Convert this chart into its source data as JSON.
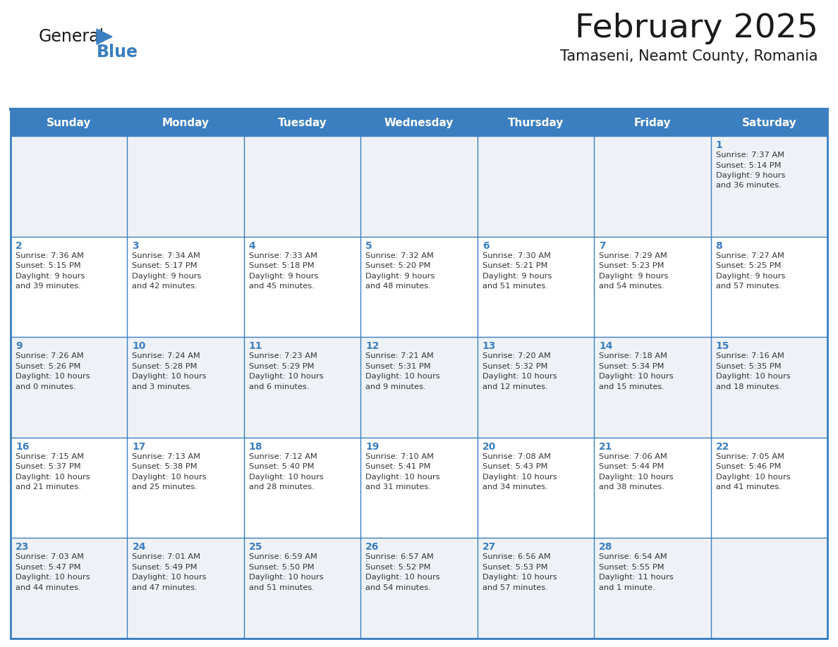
{
  "title": "February 2025",
  "subtitle": "Tamaseni, Neamt County, Romania",
  "title_fontsize": 34,
  "subtitle_fontsize": 15,
  "header_bg_color": "#3c7fc0",
  "header_text_color": "#ffffff",
  "row0_bg": "#eef2f7",
  "row1_bg": "#ffffff",
  "border_color": "#3c7fc0",
  "day_number_color": "#3c7fc0",
  "cell_text_color": "#333333",
  "days_of_week": [
    "Sunday",
    "Monday",
    "Tuesday",
    "Wednesday",
    "Thursday",
    "Friday",
    "Saturday"
  ],
  "calendar_data": [
    [
      {
        "day": "",
        "info": ""
      },
      {
        "day": "",
        "info": ""
      },
      {
        "day": "",
        "info": ""
      },
      {
        "day": "",
        "info": ""
      },
      {
        "day": "",
        "info": ""
      },
      {
        "day": "",
        "info": ""
      },
      {
        "day": "1",
        "info": "Sunrise: 7:37 AM\nSunset: 5:14 PM\nDaylight: 9 hours\nand 36 minutes."
      }
    ],
    [
      {
        "day": "2",
        "info": "Sunrise: 7:36 AM\nSunset: 5:15 PM\nDaylight: 9 hours\nand 39 minutes."
      },
      {
        "day": "3",
        "info": "Sunrise: 7:34 AM\nSunset: 5:17 PM\nDaylight: 9 hours\nand 42 minutes."
      },
      {
        "day": "4",
        "info": "Sunrise: 7:33 AM\nSunset: 5:18 PM\nDaylight: 9 hours\nand 45 minutes."
      },
      {
        "day": "5",
        "info": "Sunrise: 7:32 AM\nSunset: 5:20 PM\nDaylight: 9 hours\nand 48 minutes."
      },
      {
        "day": "6",
        "info": "Sunrise: 7:30 AM\nSunset: 5:21 PM\nDaylight: 9 hours\nand 51 minutes."
      },
      {
        "day": "7",
        "info": "Sunrise: 7:29 AM\nSunset: 5:23 PM\nDaylight: 9 hours\nand 54 minutes."
      },
      {
        "day": "8",
        "info": "Sunrise: 7:27 AM\nSunset: 5:25 PM\nDaylight: 9 hours\nand 57 minutes."
      }
    ],
    [
      {
        "day": "9",
        "info": "Sunrise: 7:26 AM\nSunset: 5:26 PM\nDaylight: 10 hours\nand 0 minutes."
      },
      {
        "day": "10",
        "info": "Sunrise: 7:24 AM\nSunset: 5:28 PM\nDaylight: 10 hours\nand 3 minutes."
      },
      {
        "day": "11",
        "info": "Sunrise: 7:23 AM\nSunset: 5:29 PM\nDaylight: 10 hours\nand 6 minutes."
      },
      {
        "day": "12",
        "info": "Sunrise: 7:21 AM\nSunset: 5:31 PM\nDaylight: 10 hours\nand 9 minutes."
      },
      {
        "day": "13",
        "info": "Sunrise: 7:20 AM\nSunset: 5:32 PM\nDaylight: 10 hours\nand 12 minutes."
      },
      {
        "day": "14",
        "info": "Sunrise: 7:18 AM\nSunset: 5:34 PM\nDaylight: 10 hours\nand 15 minutes."
      },
      {
        "day": "15",
        "info": "Sunrise: 7:16 AM\nSunset: 5:35 PM\nDaylight: 10 hours\nand 18 minutes."
      }
    ],
    [
      {
        "day": "16",
        "info": "Sunrise: 7:15 AM\nSunset: 5:37 PM\nDaylight: 10 hours\nand 21 minutes."
      },
      {
        "day": "17",
        "info": "Sunrise: 7:13 AM\nSunset: 5:38 PM\nDaylight: 10 hours\nand 25 minutes."
      },
      {
        "day": "18",
        "info": "Sunrise: 7:12 AM\nSunset: 5:40 PM\nDaylight: 10 hours\nand 28 minutes."
      },
      {
        "day": "19",
        "info": "Sunrise: 7:10 AM\nSunset: 5:41 PM\nDaylight: 10 hours\nand 31 minutes."
      },
      {
        "day": "20",
        "info": "Sunrise: 7:08 AM\nSunset: 5:43 PM\nDaylight: 10 hours\nand 34 minutes."
      },
      {
        "day": "21",
        "info": "Sunrise: 7:06 AM\nSunset: 5:44 PM\nDaylight: 10 hours\nand 38 minutes."
      },
      {
        "day": "22",
        "info": "Sunrise: 7:05 AM\nSunset: 5:46 PM\nDaylight: 10 hours\nand 41 minutes."
      }
    ],
    [
      {
        "day": "23",
        "info": "Sunrise: 7:03 AM\nSunset: 5:47 PM\nDaylight: 10 hours\nand 44 minutes."
      },
      {
        "day": "24",
        "info": "Sunrise: 7:01 AM\nSunset: 5:49 PM\nDaylight: 10 hours\nand 47 minutes."
      },
      {
        "day": "25",
        "info": "Sunrise: 6:59 AM\nSunset: 5:50 PM\nDaylight: 10 hours\nand 51 minutes."
      },
      {
        "day": "26",
        "info": "Sunrise: 6:57 AM\nSunset: 5:52 PM\nDaylight: 10 hours\nand 54 minutes."
      },
      {
        "day": "27",
        "info": "Sunrise: 6:56 AM\nSunset: 5:53 PM\nDaylight: 10 hours\nand 57 minutes."
      },
      {
        "day": "28",
        "info": "Sunrise: 6:54 AM\nSunset: 5:55 PM\nDaylight: 11 hours\nand 1 minute."
      },
      {
        "day": "",
        "info": ""
      }
    ]
  ]
}
